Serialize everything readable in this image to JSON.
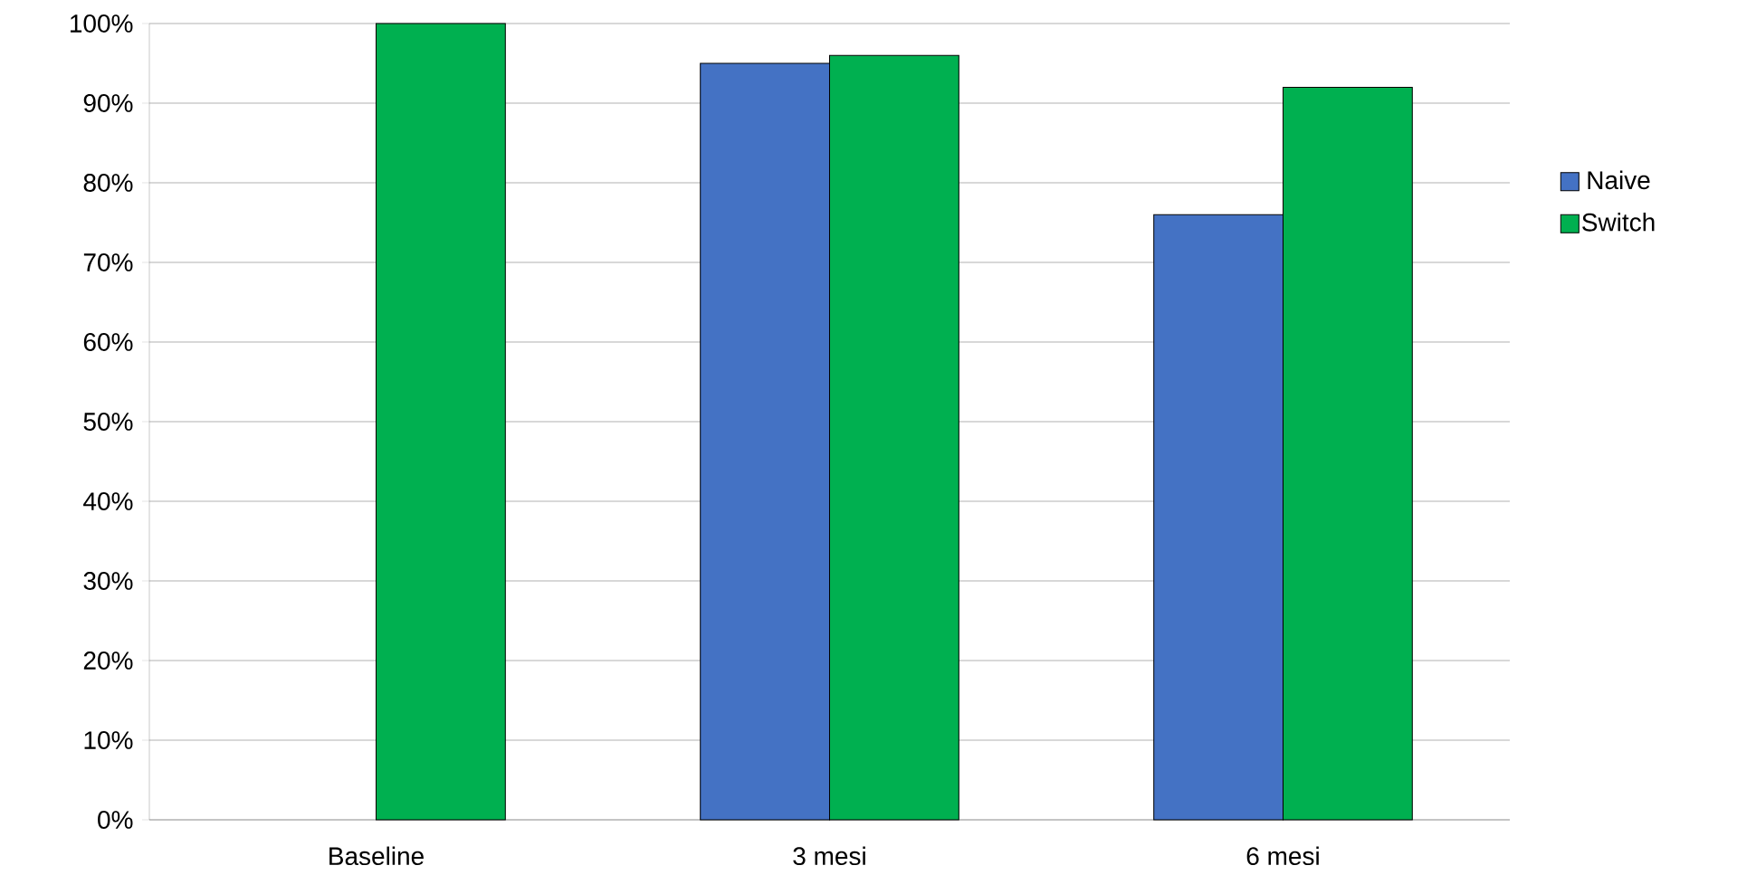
{
  "chart_data": {
    "type": "bar",
    "categories": [
      "Baseline",
      "3 mesi",
      "6 mesi"
    ],
    "series": [
      {
        "name": "Naive",
        "color": "#4472c4",
        "values": [
          null,
          95,
          76
        ]
      },
      {
        "name": "Switch",
        "color": "#00b050",
        "values": [
          100,
          96,
          92
        ]
      }
    ],
    "ylim": [
      0,
      100
    ],
    "yticks": [
      {
        "value": 0,
        "label": "0%"
      },
      {
        "value": 10,
        "label": "10%"
      },
      {
        "value": 20,
        "label": "20%"
      },
      {
        "value": 30,
        "label": "30%"
      },
      {
        "value": 40,
        "label": "40%"
      },
      {
        "value": 50,
        "label": "50%"
      },
      {
        "value": 60,
        "label": "60%"
      },
      {
        "value": 70,
        "label": "70%"
      },
      {
        "value": 80,
        "label": "80%"
      },
      {
        "value": 90,
        "label": "90%"
      },
      {
        "value": 100,
        "label": "100%"
      }
    ],
    "grid": "y",
    "legend": "right"
  }
}
